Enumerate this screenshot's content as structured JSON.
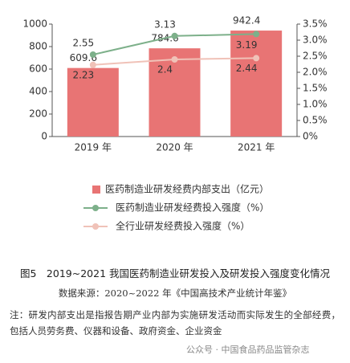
{
  "chart_data": {
    "type": "bar-line",
    "categories": [
      "2019 年",
      "2020 年",
      "2021 年"
    ],
    "series": [
      {
        "name": "医药制造业研发经费内部支出（亿元）",
        "type": "bar",
        "color": "#e87474",
        "values": [
          609.6,
          784.6,
          942.4
        ]
      },
      {
        "name": "医药制造业研发经费投入强度（%）",
        "type": "line",
        "axis": "y2",
        "color": "#7db08a",
        "values": [
          2.55,
          3.13,
          3.19
        ]
      },
      {
        "name": "全行业研发经费投入强度（%）",
        "type": "line",
        "axis": "y2",
        "color": "#f0c2b8",
        "values": [
          2.23,
          2.4,
          2.44
        ]
      }
    ],
    "ylim": [
      0,
      1000
    ],
    "yticks": [
      0,
      200,
      400,
      600,
      800,
      1000
    ],
    "y2lim": [
      0,
      3.5
    ],
    "y2ticks": [
      {
        "value": 0,
        "label": "0%"
      },
      {
        "value": 0.5,
        "label": "0.5%"
      },
      {
        "value": 1,
        "label": "1.0%"
      },
      {
        "value": 1.5,
        "label": "1.5%"
      },
      {
        "value": 2,
        "label": "2.0%"
      },
      {
        "value": 2.5,
        "label": "2.5%"
      },
      {
        "value": 3,
        "label": "3.0%"
      },
      {
        "value": 3.5,
        "label": "3.5%"
      }
    ],
    "legend": "bottom"
  },
  "caption": "图5　2019~2021 我国医药制造业研发投入及研发投入强度变化情况",
  "source": "数据来源：2020~2022 年《中国高技术产业统计年鉴》",
  "note": "注：研发内部支出是指报告期产业内部为实施研发活动而实际发生的全部经费，包括人员劳务费、仪器和设备、政府资金、企业资金",
  "watermark": "公众号 · 中国食品药品监管杂志"
}
